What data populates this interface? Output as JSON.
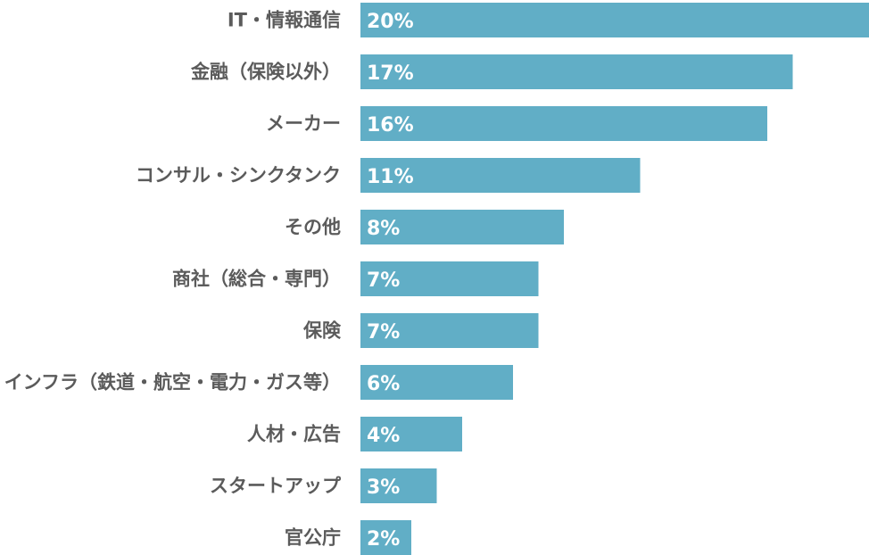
{
  "chart_data": {
    "type": "bar",
    "orientation": "horizontal",
    "title": "",
    "xlabel": "",
    "ylabel": "",
    "xlim": [
      0,
      20
    ],
    "grid": false,
    "legend": "none",
    "categories": [
      "IT・情報通信",
      "金融（保険以外）",
      "メーカー",
      "コンサル・シンクタンク",
      "その他",
      "商社（総合・専門）",
      "保険",
      "インフラ（鉄道・航空・電力・ガス等）",
      "人材・広告",
      "スタートアップ",
      "官公庁"
    ],
    "values": [
      20,
      17,
      16,
      11,
      8,
      7,
      7,
      6,
      4,
      3,
      2
    ],
    "value_labels": [
      "20%",
      "17%",
      "16%",
      "11%",
      "8%",
      "7%",
      "7%",
      "6%",
      "4%",
      "3%",
      "2%"
    ],
    "bar_color": "#61AEC6",
    "label_color": "#5B5B5B",
    "value_label_color": "#FFFFFF"
  }
}
